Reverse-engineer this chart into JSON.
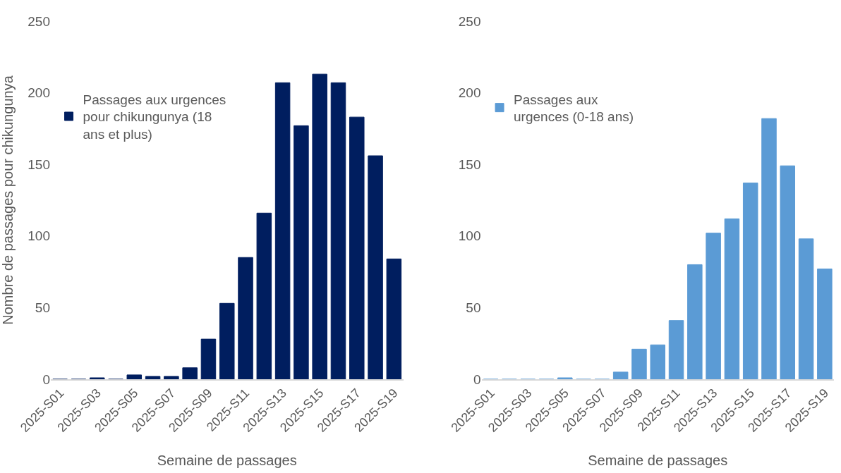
{
  "chart_data": [
    {
      "type": "bar",
      "xlabel": "Semaine de passages",
      "ylabel": "Nombre de passages pour chikungunya",
      "categories": [
        "2025-S01",
        null,
        "2025-S03",
        null,
        "2025-S05",
        null,
        "2025-S07",
        null,
        "2025-S09",
        null,
        "2025-S11",
        null,
        "2025-S13",
        null,
        "2025-S15",
        null,
        "2025-S17",
        null,
        "2025-S19"
      ],
      "series": [
        {
          "name": "Passages aux urgences pour chikungunya (18 ans et plus)",
          "color": "#001e5f",
          "values": [
            0,
            0,
            1,
            0,
            3,
            2,
            2,
            8,
            28,
            53,
            85,
            116,
            207,
            177,
            213,
            207,
            183,
            156,
            84
          ]
        }
      ],
      "ylim": [
        0,
        250
      ],
      "yticks": [
        0,
        50,
        100,
        150,
        200,
        250
      ],
      "legend": "top left",
      "grid": false
    },
    {
      "type": "bar",
      "xlabel": "Semaine de passages",
      "categories": [
        "2025-S01",
        null,
        "2025-S03",
        null,
        "2025-S05",
        null,
        "2025-S07",
        null,
        "2025-S09",
        null,
        "2025-S11",
        null,
        "2025-S13",
        null,
        "2025-S15",
        null,
        "2025-S17",
        null,
        "2025-S19"
      ],
      "series": [
        {
          "name": "Passages aux urgences (0-18 ans)",
          "color": "#5b9bd5",
          "values": [
            0,
            0,
            0,
            0,
            1,
            0,
            0,
            5,
            21,
            24,
            41,
            80,
            102,
            112,
            137,
            182,
            149,
            98,
            77
          ]
        }
      ],
      "ylim": [
        0,
        250
      ],
      "yticks": [
        0,
        50,
        100,
        150,
        200,
        250
      ],
      "legend": "top left",
      "grid": false
    }
  ]
}
